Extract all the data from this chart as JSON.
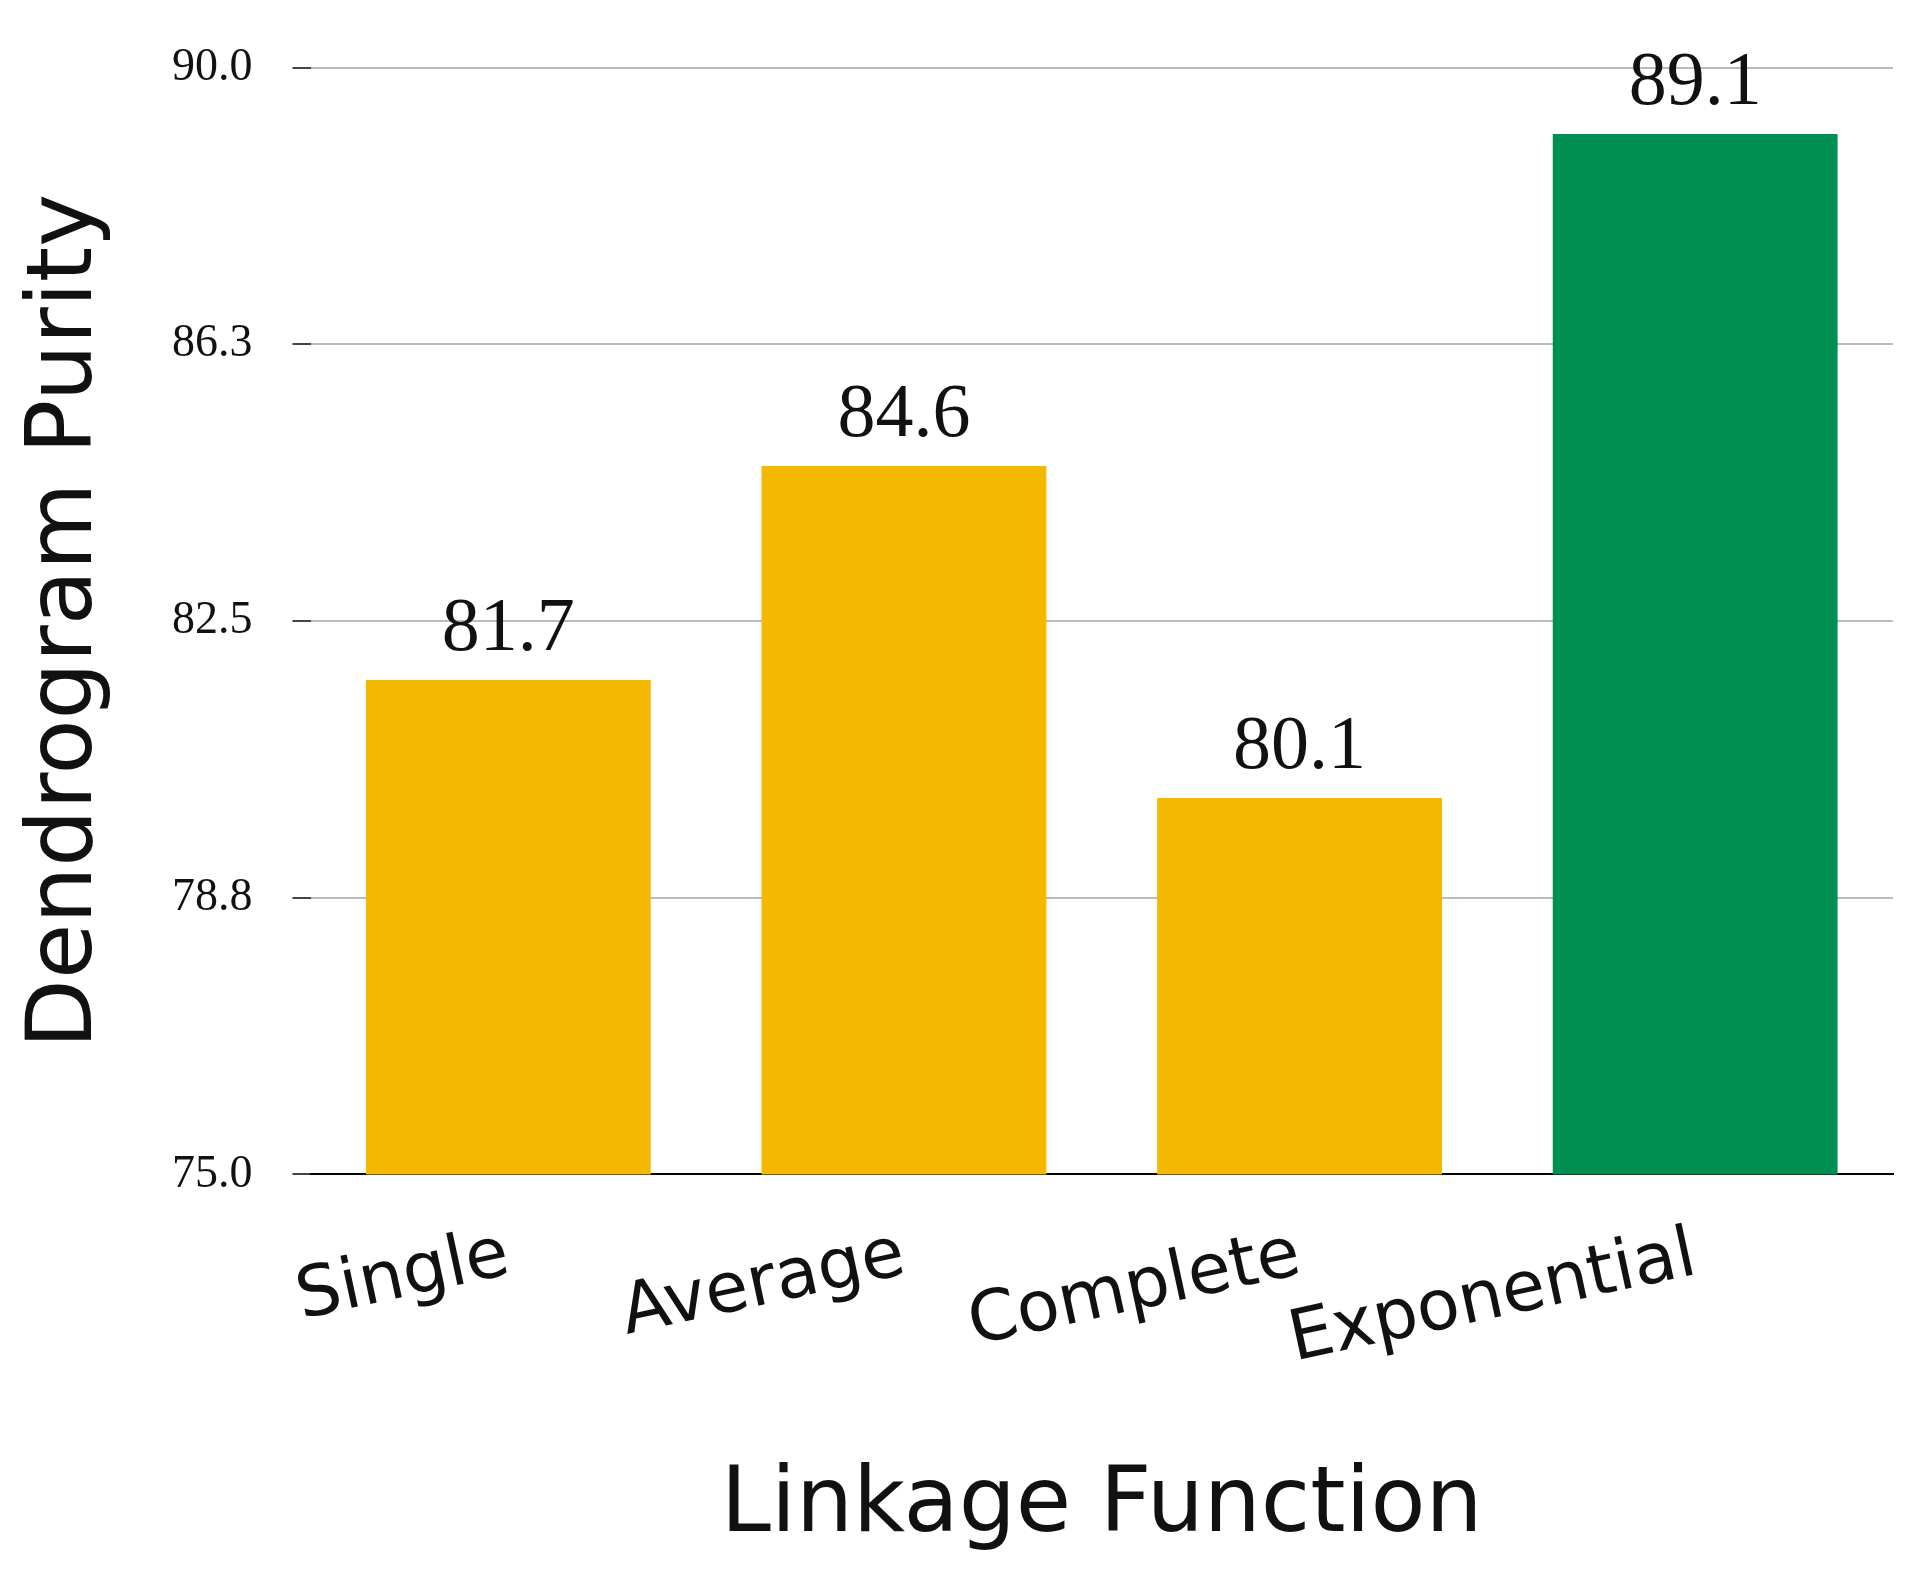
{
  "chart_data": {
    "type": "bar",
    "xlabel": "Linkage Function",
    "ylabel": "Dendrogram Purity",
    "categories": [
      "Single",
      "Average",
      "Complete",
      "Exponential"
    ],
    "values": [
      81.7,
      84.6,
      80.1,
      89.1
    ],
    "colors": [
      "#f5b800",
      "#f5b800",
      "#f5b800",
      "#008f50"
    ],
    "ylim": [
      75,
      90
    ],
    "yticks": [
      {
        "value": 75,
        "label": "75.0"
      },
      {
        "value": 78.75,
        "label": "78.8"
      },
      {
        "value": 82.5,
        "label": "82.5"
      },
      {
        "value": 86.25,
        "label": "86.3"
      },
      {
        "value": 90,
        "label": "90.0"
      }
    ],
    "grid": "y",
    "legend": false,
    "data_labels": true
  }
}
